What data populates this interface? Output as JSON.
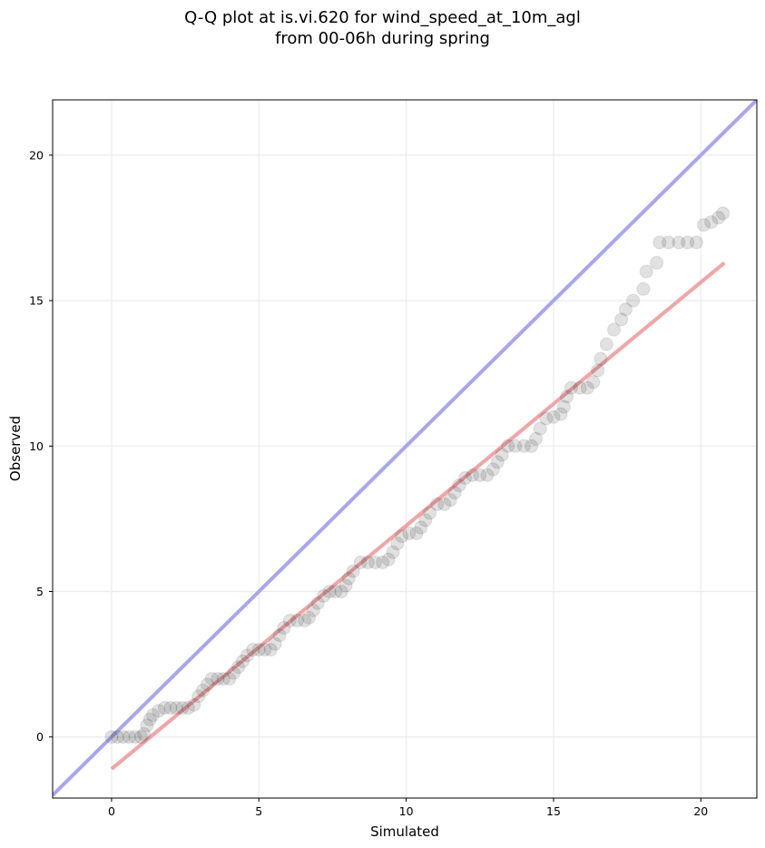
{
  "chart_data": {
    "type": "scatter",
    "title": [
      "Q-Q plot at is.vi.620 for wind_speed_at_10m_agl",
      "from 00-06h during spring"
    ],
    "xlabel": "Simulated",
    "ylabel": "Observed",
    "xlim": [
      -2.0,
      21.9
    ],
    "ylim": [
      -2.1,
      21.9
    ],
    "xticks": [
      0,
      5,
      10,
      15,
      20
    ],
    "yticks": [
      0,
      5,
      10,
      15,
      20
    ],
    "grid": true,
    "reference_line": {
      "slope": 1,
      "intercept": 0,
      "color": "#a6a6f5"
    },
    "fit_line": {
      "x": [
        0.0,
        20.8
      ],
      "y": [
        -1.1,
        16.3
      ],
      "color": "#f5a3a3"
    },
    "marker_color": "#333333",
    "points": [
      [
        0.0,
        0.0
      ],
      [
        0.2,
        0.0
      ],
      [
        0.4,
        0.0
      ],
      [
        0.6,
        0.0
      ],
      [
        0.8,
        0.0
      ],
      [
        1.0,
        0.0
      ],
      [
        1.1,
        0.1
      ],
      [
        1.2,
        0.4
      ],
      [
        1.3,
        0.6
      ],
      [
        1.4,
        0.75
      ],
      [
        1.6,
        0.9
      ],
      [
        1.8,
        1.0
      ],
      [
        2.0,
        1.0
      ],
      [
        2.2,
        1.0
      ],
      [
        2.4,
        1.0
      ],
      [
        2.6,
        1.0
      ],
      [
        2.8,
        1.1
      ],
      [
        2.95,
        1.4
      ],
      [
        3.1,
        1.6
      ],
      [
        3.25,
        1.8
      ],
      [
        3.4,
        2.0
      ],
      [
        3.6,
        2.0
      ],
      [
        3.8,
        2.0
      ],
      [
        4.0,
        2.0
      ],
      [
        4.15,
        2.2
      ],
      [
        4.3,
        2.4
      ],
      [
        4.45,
        2.6
      ],
      [
        4.6,
        2.8
      ],
      [
        4.8,
        3.0
      ],
      [
        5.0,
        3.0
      ],
      [
        5.2,
        3.0
      ],
      [
        5.4,
        3.0
      ],
      [
        5.55,
        3.2
      ],
      [
        5.7,
        3.5
      ],
      [
        5.85,
        3.75
      ],
      [
        6.05,
        4.0
      ],
      [
        6.3,
        4.0
      ],
      [
        6.55,
        4.0
      ],
      [
        6.7,
        4.1
      ],
      [
        6.85,
        4.35
      ],
      [
        7.0,
        4.6
      ],
      [
        7.2,
        4.85
      ],
      [
        7.4,
        5.0
      ],
      [
        7.6,
        5.0
      ],
      [
        7.8,
        5.0
      ],
      [
        7.95,
        5.2
      ],
      [
        8.05,
        5.45
      ],
      [
        8.2,
        5.7
      ],
      [
        8.45,
        6.0
      ],
      [
        8.7,
        6.0
      ],
      [
        8.95,
        6.0
      ],
      [
        9.2,
        6.0
      ],
      [
        9.4,
        6.1
      ],
      [
        9.55,
        6.35
      ],
      [
        9.7,
        6.65
      ],
      [
        9.85,
        6.9
      ],
      [
        10.1,
        7.0
      ],
      [
        10.35,
        7.0
      ],
      [
        10.5,
        7.2
      ],
      [
        10.65,
        7.45
      ],
      [
        10.8,
        7.7
      ],
      [
        11.05,
        8.0
      ],
      [
        11.3,
        8.0
      ],
      [
        11.5,
        8.15
      ],
      [
        11.65,
        8.4
      ],
      [
        11.8,
        8.65
      ],
      [
        12.0,
        8.9
      ],
      [
        12.25,
        9.0
      ],
      [
        12.5,
        9.0
      ],
      [
        12.75,
        9.0
      ],
      [
        12.95,
        9.2
      ],
      [
        13.1,
        9.45
      ],
      [
        13.25,
        9.7
      ],
      [
        13.45,
        10.0
      ],
      [
        13.7,
        10.0
      ],
      [
        14.0,
        10.0
      ],
      [
        14.25,
        10.0
      ],
      [
        14.4,
        10.25
      ],
      [
        14.55,
        10.6
      ],
      [
        14.75,
        10.95
      ],
      [
        15.0,
        11.0
      ],
      [
        15.25,
        11.1
      ],
      [
        15.35,
        11.35
      ],
      [
        15.45,
        11.7
      ],
      [
        15.6,
        12.0
      ],
      [
        15.9,
        12.0
      ],
      [
        16.15,
        12.0
      ],
      [
        16.35,
        12.2
      ],
      [
        16.5,
        12.6
      ],
      [
        16.6,
        13.0
      ],
      [
        16.8,
        13.5
      ],
      [
        17.05,
        14.0
      ],
      [
        17.3,
        14.35
      ],
      [
        17.45,
        14.7
      ],
      [
        17.7,
        15.0
      ],
      [
        18.05,
        15.4
      ],
      [
        18.15,
        16.0
      ],
      [
        18.5,
        16.3
      ],
      [
        18.6,
        17.0
      ],
      [
        18.9,
        17.0
      ],
      [
        19.25,
        17.0
      ],
      [
        19.55,
        17.0
      ],
      [
        19.85,
        17.0
      ],
      [
        20.1,
        17.6
      ],
      [
        20.35,
        17.7
      ],
      [
        20.6,
        17.85
      ],
      [
        20.75,
        18.0
      ]
    ]
  }
}
